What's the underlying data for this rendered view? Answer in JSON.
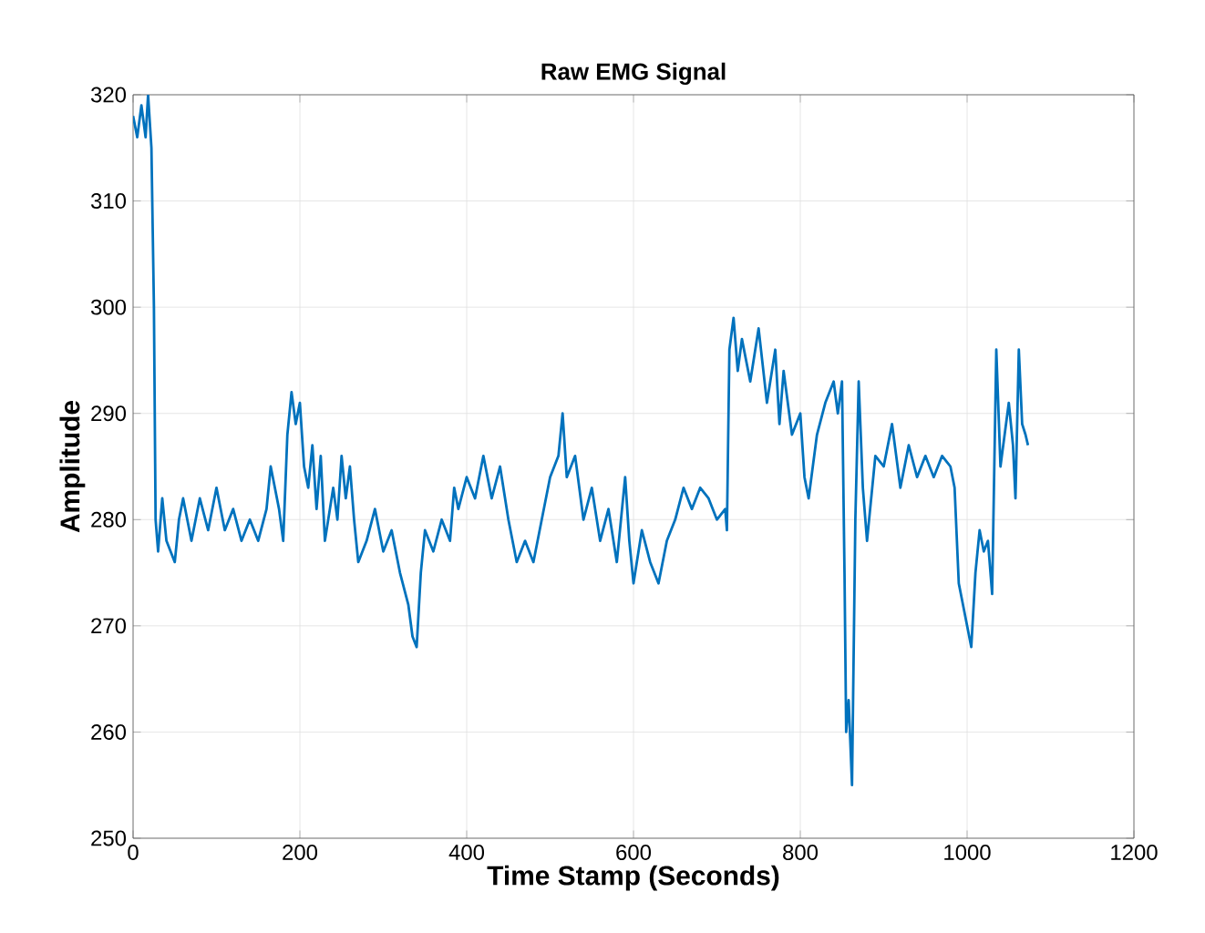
{
  "chart_data": {
    "type": "line",
    "title": "Raw EMG Signal",
    "xlabel": "Time Stamp (Seconds)",
    "ylabel": "Amplitude",
    "xlim": [
      0,
      1200
    ],
    "ylim": [
      250,
      320
    ],
    "xticks": [
      0,
      200,
      400,
      600,
      800,
      1000,
      1200
    ],
    "yticks": [
      250,
      260,
      270,
      280,
      290,
      300,
      310,
      320
    ],
    "grid": true,
    "series": [
      {
        "color": "#0072bd",
        "x": [
          0,
          5,
          10,
          15,
          18,
          22,
          25,
          27,
          30,
          35,
          40,
          50,
          55,
          60,
          70,
          80,
          90,
          100,
          110,
          120,
          130,
          140,
          150,
          160,
          165,
          170,
          175,
          180,
          185,
          190,
          195,
          200,
          205,
          210,
          215,
          220,
          225,
          230,
          240,
          245,
          250,
          255,
          260,
          265,
          270,
          280,
          290,
          300,
          310,
          320,
          330,
          335,
          340,
          345,
          350,
          360,
          370,
          380,
          385,
          390,
          400,
          410,
          420,
          430,
          440,
          450,
          460,
          470,
          480,
          490,
          500,
          510,
          515,
          520,
          530,
          540,
          550,
          560,
          570,
          580,
          590,
          595,
          600,
          610,
          620,
          630,
          640,
          650,
          660,
          670,
          680,
          690,
          700,
          710,
          712,
          715,
          720,
          725,
          730,
          740,
          750,
          760,
          770,
          775,
          780,
          790,
          800,
          805,
          810,
          820,
          830,
          840,
          845,
          850,
          853,
          855,
          858,
          862,
          866,
          870,
          875,
          880,
          890,
          900,
          910,
          915,
          920,
          930,
          940,
          950,
          960,
          970,
          980,
          985,
          990,
          995,
          1000,
          1005,
          1010,
          1015,
          1020,
          1025,
          1030,
          1035,
          1040,
          1050,
          1055,
          1058,
          1062,
          1066,
          1070,
          1073
        ],
        "values": [
          318,
          316,
          319,
          316,
          320,
          315,
          300,
          280,
          277,
          282,
          278,
          276,
          280,
          282,
          278,
          282,
          279,
          283,
          279,
          281,
          278,
          280,
          278,
          281,
          285,
          283,
          281,
          278,
          288,
          292,
          289,
          291,
          285,
          283,
          287,
          281,
          286,
          278,
          283,
          280,
          286,
          282,
          285,
          280,
          276,
          278,
          281,
          277,
          279,
          275,
          272,
          269,
          268,
          275,
          279,
          277,
          280,
          278,
          283,
          281,
          284,
          282,
          286,
          282,
          285,
          280,
          276,
          278,
          276,
          280,
          284,
          286,
          290,
          284,
          286,
          280,
          283,
          278,
          281,
          276,
          284,
          278,
          274,
          279,
          276,
          274,
          278,
          280,
          283,
          281,
          283,
          282,
          280,
          281,
          279,
          296,
          299,
          294,
          297,
          293,
          298,
          291,
          296,
          289,
          294,
          288,
          290,
          284,
          282,
          288,
          291,
          293,
          290,
          293,
          275,
          260,
          263,
          255,
          280,
          293,
          283,
          278,
          286,
          285,
          289,
          286,
          283,
          287,
          284,
          286,
          284,
          286,
          285,
          283,
          274,
          272,
          270,
          268,
          275,
          279,
          277,
          278,
          273,
          296,
          285,
          291,
          287,
          282,
          296,
          289,
          288,
          287
        ]
      }
    ]
  }
}
